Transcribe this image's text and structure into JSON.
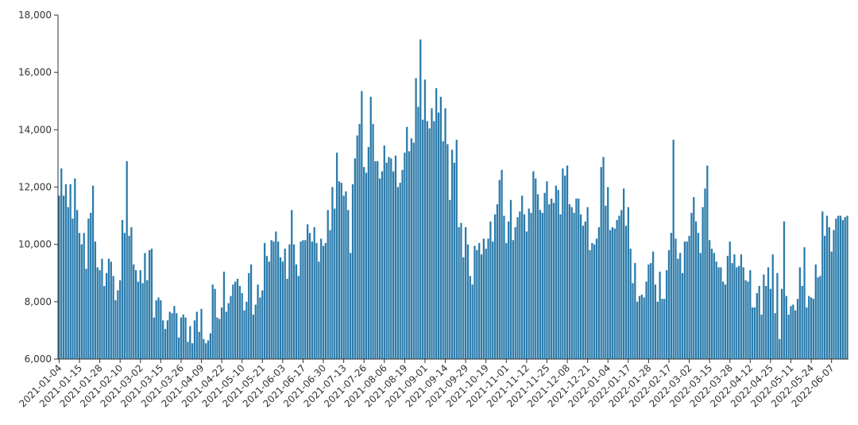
{
  "chart_data": {
    "type": "bar",
    "color": "#2b7bab",
    "ylim": [
      6000,
      18000
    ],
    "yticks": [
      {
        "value": 6000,
        "label": "6,000"
      },
      {
        "value": 8000,
        "label": "8,000"
      },
      {
        "value": 10000,
        "label": "10,000"
      },
      {
        "value": 12000,
        "label": "12,000"
      },
      {
        "value": 14000,
        "label": "14,000"
      },
      {
        "value": 16000,
        "label": "16,000"
      },
      {
        "value": 18000,
        "label": "18,000"
      }
    ],
    "categories": [
      "2021-01-04",
      null,
      null,
      null,
      null,
      null,
      null,
      null,
      null,
      "2021-01-15",
      null,
      null,
      null,
      null,
      null,
      null,
      null,
      null,
      "2021-01-28",
      null,
      null,
      null,
      null,
      null,
      null,
      null,
      null,
      "2021-02-10",
      null,
      null,
      null,
      null,
      null,
      null,
      null,
      null,
      "2021-03-02",
      null,
      null,
      null,
      null,
      null,
      null,
      null,
      null,
      "2021-03-15",
      null,
      null,
      null,
      null,
      null,
      null,
      null,
      null,
      "2021-03-26",
      null,
      null,
      null,
      null,
      null,
      null,
      null,
      null,
      "2021-04-09",
      null,
      null,
      null,
      null,
      null,
      null,
      null,
      null,
      "2021-04-22",
      null,
      null,
      null,
      null,
      null,
      null,
      null,
      null,
      "2021-05-10",
      null,
      null,
      null,
      null,
      null,
      null,
      null,
      null,
      "2021-05-21",
      null,
      null,
      null,
      null,
      null,
      null,
      null,
      null,
      "2021-06-03",
      null,
      null,
      null,
      null,
      null,
      null,
      null,
      null,
      "2021-06-17",
      null,
      null,
      null,
      null,
      null,
      null,
      null,
      null,
      "2021-06-30",
      null,
      null,
      null,
      null,
      null,
      null,
      null,
      null,
      "2021-07-13",
      null,
      null,
      null,
      null,
      null,
      null,
      null,
      null,
      "2021-07-26",
      null,
      null,
      null,
      null,
      null,
      null,
      null,
      null,
      "2021-08-06",
      null,
      null,
      null,
      null,
      null,
      null,
      null,
      null,
      "2021-08-19",
      null,
      null,
      null,
      null,
      null,
      null,
      null,
      null,
      "2021-09-01",
      null,
      null,
      null,
      null,
      null,
      null,
      null,
      null,
      "2021-09-14",
      null,
      null,
      null,
      null,
      null,
      null,
      null,
      null,
      "2021-09-29",
      null,
      null,
      null,
      null,
      null,
      null,
      null,
      null,
      "2021-10-19",
      null,
      null,
      null,
      null,
      null,
      null,
      null,
      null,
      "2021-11-01",
      null,
      null,
      null,
      null,
      null,
      null,
      null,
      null,
      "2021-11-12",
      null,
      null,
      null,
      null,
      null,
      null,
      null,
      null,
      "2021-11-25",
      null,
      null,
      null,
      null,
      null,
      null,
      null,
      null,
      "2021-12-08",
      null,
      null,
      null,
      null,
      null,
      null,
      null,
      null,
      "2021-12-21",
      null,
      null,
      null,
      null,
      null,
      null,
      null,
      null,
      "2022-01-04",
      null,
      null,
      null,
      null,
      null,
      null,
      null,
      null,
      "2022-01-17",
      null,
      null,
      null,
      null,
      null,
      null,
      null,
      null,
      "2022-01-28",
      null,
      null,
      null,
      null,
      null,
      null,
      null,
      null,
      "2022-02-17",
      null,
      null,
      null,
      null,
      null,
      null,
      null,
      null,
      "2022-03-02",
      null,
      null,
      null,
      null,
      null,
      null,
      null,
      null,
      "2022-03-15",
      null,
      null,
      null,
      null,
      null,
      null,
      null,
      null,
      "2022-03-28",
      null,
      null,
      null,
      null,
      null,
      null,
      null,
      null,
      "2022-04-12",
      null,
      null,
      null,
      null,
      null,
      null,
      null,
      null,
      "2022-04-25",
      null,
      null,
      null,
      null,
      null,
      null,
      null,
      null,
      "2022-05-11",
      null,
      null,
      null,
      null,
      null,
      null,
      null,
      null,
      "2022-05-24",
      null,
      null,
      null,
      null,
      null,
      null,
      null,
      null,
      "2022-06-07",
      null,
      null,
      null,
      null,
      null,
      null,
      null
    ],
    "values": [
      11700,
      12650,
      11700,
      12100,
      11300,
      12100,
      10900,
      12300,
      11200,
      10400,
      10000,
      10400,
      9150,
      10900,
      11100,
      12050,
      10100,
      9200,
      9100,
      9500,
      8550,
      9000,
      9500,
      9400,
      8900,
      8050,
      8400,
      8750,
      10850,
      10400,
      12900,
      10300,
      10600,
      9300,
      9100,
      8700,
      9100,
      8650,
      9700,
      8750,
      9800,
      9850,
      7450,
      8050,
      8150,
      8050,
      7350,
      7050,
      7350,
      7650,
      7600,
      7850,
      7600,
      6750,
      7450,
      7550,
      7450,
      6600,
      7150,
      6550,
      7350,
      7650,
      6950,
      7750,
      6700,
      6550,
      6650,
      6900,
      8600,
      8450,
      7450,
      7400,
      7800,
      9050,
      7650,
      7950,
      8200,
      8600,
      8700,
      8800,
      8550,
      8300,
      7700,
      8000,
      9000,
      9300,
      7550,
      7900,
      8600,
      8150,
      8400,
      10050,
      9600,
      9400,
      10150,
      10100,
      10450,
      10100,
      9550,
      9400,
      9850,
      8800,
      10000,
      11200,
      10000,
      9300,
      8900,
      10100,
      10150,
      10150,
      10700,
      10400,
      10100,
      10600,
      10050,
      9400,
      10200,
      9950,
      10050,
      11200,
      10500,
      12000,
      11250,
      13200,
      12200,
      12150,
      11700,
      11850,
      11200,
      9700,
      12100,
      13000,
      13800,
      14200,
      15350,
      12700,
      12500,
      13400,
      15150,
      14200,
      12900,
      12900,
      12300,
      12550,
      13450,
      12850,
      13050,
      13000,
      12550,
      13100,
      12000,
      12150,
      12600,
      13200,
      14100,
      13250,
      13700,
      13550,
      15800,
      14800,
      17150,
      14350,
      15750,
      14300,
      14050,
      14750,
      14300,
      15450,
      14600,
      15150,
      13600,
      14750,
      13500,
      11550,
      13300,
      12850,
      13650,
      10600,
      10750,
      9550,
      10600,
      10000,
      8900,
      8600,
      9950,
      9800,
      10050,
      9650,
      10200,
      9850,
      10200,
      10800,
      10100,
      11050,
      11400,
      12250,
      12600,
      11000,
      10050,
      10800,
      11550,
      10150,
      10600,
      10950,
      11150,
      11700,
      11050,
      10450,
      11250,
      11100,
      12550,
      12300,
      11750,
      11200,
      11100,
      11800,
      12200,
      11400,
      11600,
      11450,
      12050,
      11900,
      11050,
      12650,
      12400,
      12750,
      11400,
      11300,
      11100,
      11600,
      11600,
      11050,
      10650,
      10800,
      11300,
      9800,
      10050,
      10000,
      10200,
      10600,
      12700,
      13050,
      11350,
      12000,
      10500,
      10600,
      10550,
      10850,
      11000,
      11200,
      11950,
      10650,
      11300,
      9850,
      8650,
      9350,
      8000,
      8200,
      8250,
      8150,
      8700,
      9300,
      9350,
      9750,
      8600,
      8000,
      9050,
      8100,
      8100,
      9100,
      9800,
      10400,
      13650,
      10200,
      9500,
      9700,
      9000,
      10100,
      10100,
      10300,
      11100,
      11650,
      10800,
      10400,
      9700,
      11300,
      11950,
      12750,
      10150,
      9850,
      9700,
      9400,
      9200,
      9200,
      8700,
      8600,
      9600,
      10100,
      9350,
      9650,
      9200,
      9250,
      9650,
      9200,
      8750,
      8700,
      9100,
      7800,
      7800,
      8300,
      8550,
      7550,
      8950,
      8550,
      9200,
      8450,
      9650,
      7600,
      9000,
      6700,
      8450,
      10800,
      8200,
      7550,
      7850,
      7900,
      7700,
      8100,
      9200,
      8550,
      9900,
      7800,
      8200,
      8150,
      8100,
      9300,
      8850,
      8900,
      11150,
      10300,
      11000,
      10600,
      9750,
      10500,
      10900,
      11000,
      11000,
      10850,
      10950,
      11000
    ]
  }
}
